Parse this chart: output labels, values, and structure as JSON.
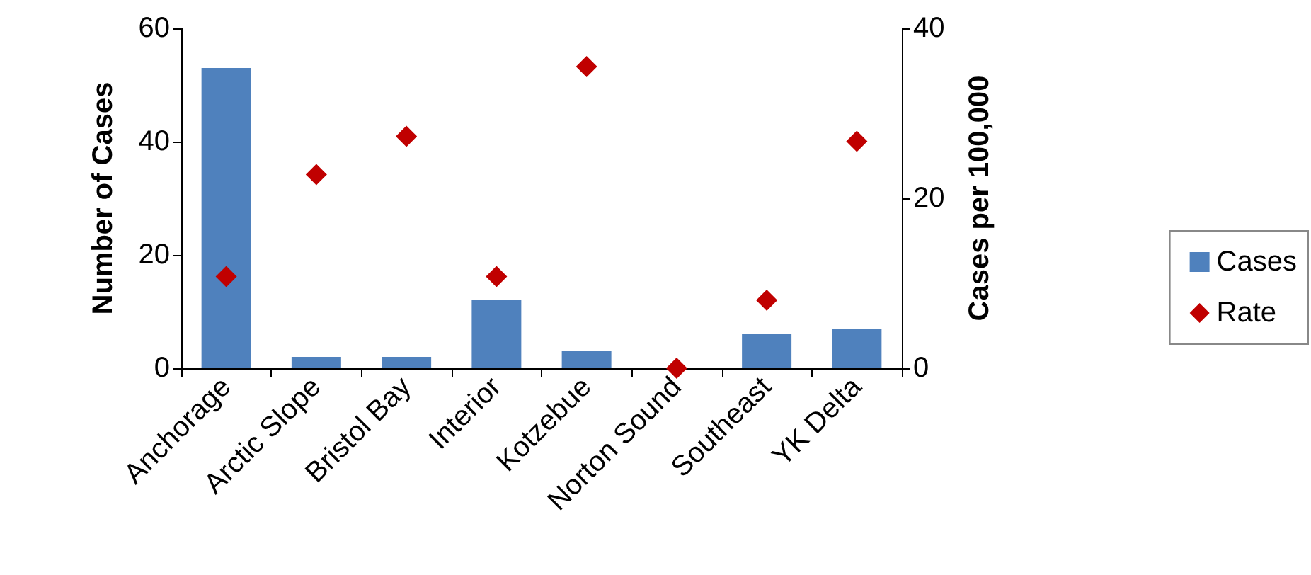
{
  "chart_data": {
    "type": "bar",
    "ylabel": "Number of Cases",
    "y2label": "Cases per 100,000",
    "categories": [
      "Anchorage",
      "Arctic Slope",
      "Bristol Bay",
      "Interior",
      "Kotzebue",
      "Norton Sound",
      "Southeast",
      "YK Delta"
    ],
    "series": [
      {
        "name": "Cases",
        "color": "#4f81bd",
        "values": [
          53,
          2,
          2,
          12,
          3,
          0,
          6,
          7
        ]
      },
      {
        "name": "Rate",
        "type": "scatter",
        "axis": "y2",
        "color": "#c00000",
        "marker": "diamond",
        "values": [
          10.8,
          22.8,
          27.3,
          10.8,
          35.5,
          0,
          8,
          26.7
        ]
      }
    ],
    "ylim": [
      0,
      60
    ],
    "yticks": [
      0,
      20,
      40,
      60
    ],
    "y2lim": [
      0,
      40
    ],
    "y2ticks": [
      0,
      20,
      40
    ],
    "grid": false,
    "legend": "right"
  }
}
